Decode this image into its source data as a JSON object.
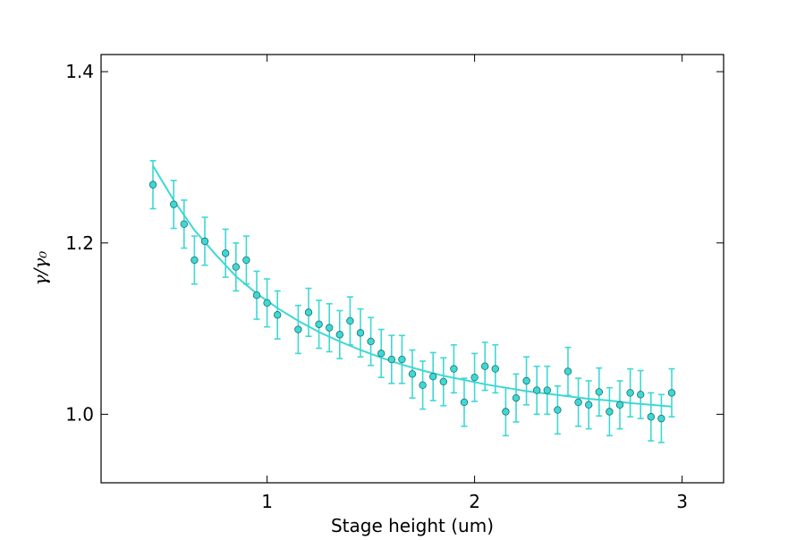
{
  "chart_data": {
    "type": "scatter",
    "title": "",
    "xlabel": "Stage height (um)",
    "ylabel": "γ/γ₀",
    "xlim": [
      0.2,
      3.2
    ],
    "ylim": [
      0.92,
      1.42
    ],
    "xticks": [
      1,
      2,
      3
    ],
    "xtick_labels": [
      "1",
      "2",
      "3"
    ],
    "yticks": [
      1.0,
      1.2,
      1.4
    ],
    "ytick_labels": [
      "1.0",
      "1.2",
      "1.4"
    ],
    "grid": false,
    "legend": "none",
    "colors": {
      "series": "#3fd8d4",
      "marker_edge": "#1a6f6d",
      "axes": "#000000"
    },
    "series": [
      {
        "kind": "errorbar",
        "x": [
          0.45,
          0.55,
          0.6,
          0.65,
          0.7,
          0.8,
          0.85,
          0.9,
          0.95,
          1.0,
          1.05,
          1.15,
          1.2,
          1.25,
          1.3,
          1.35,
          1.4,
          1.45,
          1.5,
          1.55,
          1.6,
          1.65,
          1.7,
          1.75,
          1.8,
          1.85,
          1.9,
          1.95,
          2.0,
          2.05,
          2.1,
          2.15,
          2.2,
          2.25,
          2.3,
          2.35,
          2.4,
          2.45,
          2.5,
          2.55,
          2.6,
          2.65,
          2.7,
          2.75,
          2.8,
          2.85,
          2.9,
          2.95
        ],
        "y": [
          1.268,
          1.245,
          1.222,
          1.18,
          1.202,
          1.188,
          1.172,
          1.18,
          1.139,
          1.13,
          1.116,
          1.099,
          1.119,
          1.105,
          1.101,
          1.093,
          1.109,
          1.095,
          1.085,
          1.071,
          1.064,
          1.064,
          1.047,
          1.034,
          1.044,
          1.038,
          1.053,
          1.014,
          1.043,
          1.056,
          1.053,
          1.003,
          1.019,
          1.039,
          1.028,
          1.028,
          1.005,
          1.05,
          1.014,
          1.011,
          1.026,
          1.003,
          1.011,
          1.025,
          1.023,
          0.997,
          0.995,
          1.025
        ],
        "yerr": 0.028
      },
      {
        "kind": "line",
        "x": [
          0.45,
          0.55,
          0.65,
          0.75,
          0.85,
          0.95,
          1.05,
          1.15,
          1.25,
          1.35,
          1.45,
          1.55,
          1.65,
          1.75,
          1.85,
          1.95,
          2.05,
          2.15,
          2.25,
          2.35,
          2.45,
          2.55,
          2.65,
          2.75,
          2.85,
          2.95
        ],
        "y": [
          1.29,
          1.25,
          1.215,
          1.187,
          1.161,
          1.141,
          1.124,
          1.109,
          1.096,
          1.085,
          1.075,
          1.066,
          1.058,
          1.051,
          1.045,
          1.04,
          1.035,
          1.031,
          1.027,
          1.024,
          1.021,
          1.018,
          1.016,
          1.013,
          1.011,
          1.009
        ]
      }
    ]
  }
}
